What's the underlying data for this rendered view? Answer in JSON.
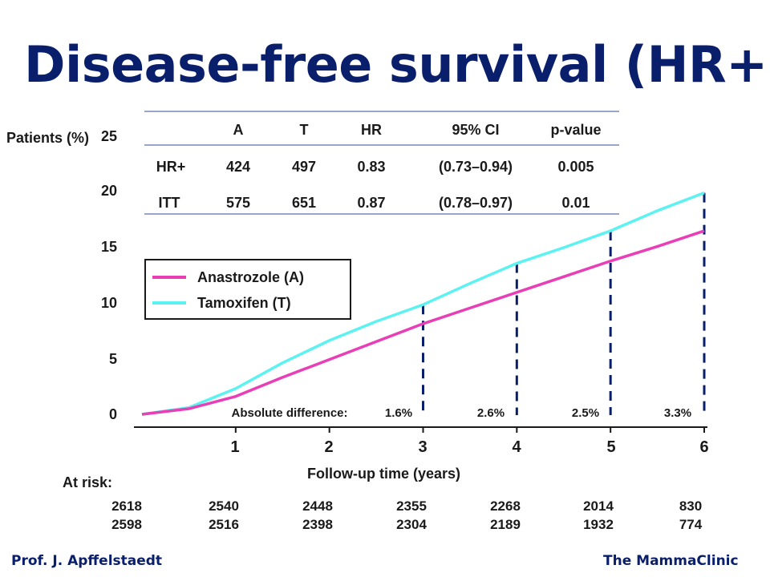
{
  "title": "Disease-free survival (HR+)",
  "table": {
    "headers": [
      "A",
      "T",
      "HR",
      "95% CI",
      "p-value"
    ],
    "rows": [
      {
        "label": "HR+",
        "a": "424",
        "t": "497",
        "hr": "0.83",
        "ci": "(0.73–0.94)",
        "p": "0.005"
      },
      {
        "label": "ITT",
        "a": "575",
        "t": "651",
        "hr": "0.87",
        "ci": "(0.78–0.97)",
        "p": "0.01"
      }
    ]
  },
  "chart_data": {
    "type": "line",
    "title": "",
    "ylabel": "Patients (%)",
    "xlabel": "Follow-up time (years)",
    "ylim": [
      0,
      25
    ],
    "xlim": [
      0,
      6
    ],
    "yticks": [
      "0",
      "5",
      "10",
      "15",
      "20",
      "25"
    ],
    "xticks": [
      "1",
      "2",
      "3",
      "4",
      "5",
      "6"
    ],
    "grid": false,
    "legend_position": "center-left",
    "series": [
      {
        "name": "Anastrozole (A)",
        "color": "#e83fb7",
        "x": [
          0,
          0.5,
          1,
          1.5,
          2,
          2.5,
          3,
          3.5,
          4,
          4.5,
          5,
          5.5,
          6
        ],
        "y": [
          0,
          0.5,
          1.6,
          3.3,
          4.9,
          6.5,
          8.1,
          9.5,
          10.9,
          12.3,
          13.7,
          15.0,
          16.4
        ]
      },
      {
        "name": "Tamoxifen (T)",
        "color": "#5cf2f2",
        "x": [
          0,
          0.5,
          1,
          1.5,
          2,
          2.5,
          3,
          3.5,
          4,
          4.5,
          5,
          5.5,
          6
        ],
        "y": [
          0,
          0.6,
          2.3,
          4.6,
          6.6,
          8.3,
          9.8,
          11.7,
          13.5,
          14.9,
          16.4,
          18.2,
          19.8
        ]
      }
    ],
    "absolute_difference": {
      "label": "Absolute difference:",
      "values": [
        {
          "year": 3,
          "text": "1.6%"
        },
        {
          "year": 4,
          "text": "2.6%"
        },
        {
          "year": 5,
          "text": "2.5%"
        },
        {
          "year": 6,
          "text": "3.3%"
        }
      ]
    }
  },
  "at_risk": {
    "label": "At risk:",
    "row_a": [
      "2618",
      "2540",
      "2448",
      "2355",
      "2268",
      "2014",
      "830"
    ],
    "row_t": [
      "2598",
      "2516",
      "2398",
      "2304",
      "2189",
      "1932",
      "774"
    ]
  },
  "footer": {
    "left": "Prof. J. Apffelstaedt",
    "right": "The MammaClinic"
  },
  "colors": {
    "title": "#0a1f6b",
    "anastrozole": "#e83fb7",
    "tamoxifen": "#5cf2f2",
    "dashed": "#0a1f6b"
  }
}
